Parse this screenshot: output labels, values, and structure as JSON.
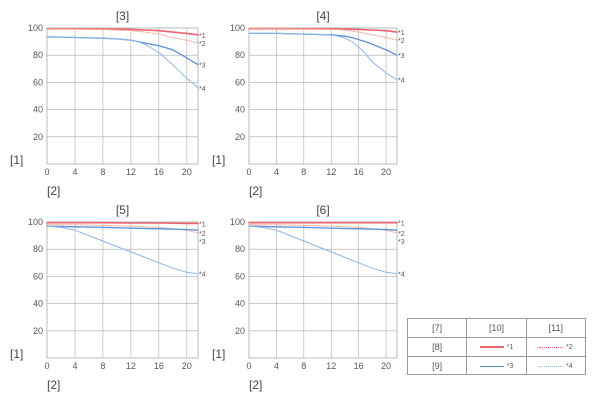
{
  "chart_data": [
    {
      "type": "line",
      "title": "[3]",
      "ylabel": "[1]",
      "xlabel": "[2]",
      "xlim": [
        0,
        21.6
      ],
      "ylim": [
        0,
        100
      ],
      "xticks": [
        0,
        4,
        8,
        12,
        16,
        20
      ],
      "yticks": [
        20,
        40,
        60,
        80,
        100
      ],
      "series": [
        {
          "name": "*1",
          "x": [
            0,
            4,
            8,
            12,
            14,
            16,
            18,
            20,
            21.6
          ],
          "y": [
            99.5,
            99.5,
            99.3,
            99,
            98.5,
            98,
            97,
            96,
            95
          ]
        },
        {
          "name": "*2",
          "x": [
            0,
            4,
            8,
            12,
            14,
            16,
            18,
            20,
            21.6
          ],
          "y": [
            99.5,
            99.3,
            99,
            98,
            97,
            95.5,
            93,
            91,
            89
          ]
        },
        {
          "name": "*3",
          "x": [
            0,
            4,
            8,
            10,
            12,
            14,
            16,
            18,
            20,
            21.6
          ],
          "y": [
            93.5,
            93,
            92.5,
            92,
            91,
            89,
            87,
            84,
            78,
            73
          ]
        },
        {
          "name": "*4",
          "x": [
            0,
            4,
            8,
            10,
            12,
            13,
            14,
            16,
            18,
            20,
            21.6
          ],
          "y": [
            93.5,
            93,
            92.5,
            92,
            91,
            90,
            88,
            82,
            73,
            63,
            56
          ]
        }
      ]
    },
    {
      "type": "line",
      "title": "[4]",
      "ylabel": "[1]",
      "xlabel": "[2]",
      "xlim": [
        0,
        21.6
      ],
      "ylim": [
        0,
        100
      ],
      "xticks": [
        0,
        4,
        8,
        12,
        16,
        20
      ],
      "yticks": [
        20,
        40,
        60,
        80,
        100
      ],
      "series": [
        {
          "name": "*1",
          "x": [
            0,
            4,
            8,
            12,
            16,
            18,
            20,
            21.6
          ],
          "y": [
            99.5,
            99.5,
            99.5,
            99.5,
            99,
            98.5,
            98,
            97
          ]
        },
        {
          "name": "*2",
          "x": [
            0,
            4,
            8,
            12,
            14,
            16,
            18,
            20,
            21.6
          ],
          "y": [
            99.5,
            99.5,
            99.3,
            99,
            98.5,
            97,
            95,
            93,
            91
          ]
        },
        {
          "name": "*3",
          "x": [
            0,
            4,
            8,
            12,
            14,
            15,
            16,
            17,
            18,
            20,
            21.6
          ],
          "y": [
            96,
            96,
            95.5,
            95,
            94,
            93,
            91.5,
            90,
            88,
            84,
            80
          ]
        },
        {
          "name": "*4",
          "x": [
            0,
            4,
            8,
            12,
            13,
            14,
            15,
            16,
            17,
            18,
            20,
            21.6
          ],
          "y": [
            96,
            96,
            95.5,
            95,
            94,
            92.5,
            90,
            86,
            81,
            75,
            67,
            62
          ]
        }
      ]
    },
    {
      "type": "line",
      "title": "[5]",
      "ylabel": "[1]",
      "xlabel": "[2]",
      "xlim": [
        0,
        21.6
      ],
      "ylim": [
        0,
        100
      ],
      "xticks": [
        0,
        4,
        8,
        12,
        16,
        20
      ],
      "yticks": [
        20,
        40,
        60,
        80,
        100
      ],
      "series": [
        {
          "name": "*1",
          "x": [
            0,
            4,
            8,
            12,
            16,
            20,
            21.6
          ],
          "y": [
            99.5,
            99.5,
            99.5,
            99.3,
            99.3,
            99,
            99
          ]
        },
        {
          "name": "*2",
          "x": [
            0,
            4,
            8,
            12,
            16,
            20,
            21.6
          ],
          "y": [
            98,
            98,
            97.5,
            97,
            96,
            94,
            92
          ]
        },
        {
          "name": "*3",
          "x": [
            0,
            4,
            8,
            12,
            16,
            20,
            21.6
          ],
          "y": [
            97,
            96.5,
            96,
            95.5,
            95,
            94.5,
            94
          ]
        },
        {
          "name": "*4",
          "x": [
            0,
            2,
            4,
            6,
            8,
            10,
            12,
            14,
            16,
            18,
            20,
            21.6
          ],
          "y": [
            97,
            96,
            94,
            90,
            86,
            82,
            78,
            74,
            70,
            66,
            63,
            62
          ]
        }
      ]
    },
    {
      "type": "line",
      "title": "[6]",
      "ylabel": "[1]",
      "xlabel": "[2]",
      "xlim": [
        0,
        21.6
      ],
      "ylim": [
        0,
        100
      ],
      "xticks": [
        0,
        4,
        8,
        12,
        16,
        20
      ],
      "yticks": [
        20,
        40,
        60,
        80,
        100
      ],
      "series": [
        {
          "name": "*1",
          "x": [
            0,
            4,
            8,
            12,
            16,
            20,
            21.6
          ],
          "y": [
            99.5,
            99.5,
            99.5,
            99.5,
            99.5,
            99.5,
            99.5
          ]
        },
        {
          "name": "*2",
          "x": [
            0,
            4,
            8,
            12,
            16,
            20,
            21.6
          ],
          "y": [
            98,
            98,
            97.5,
            97,
            96,
            94,
            92
          ]
        },
        {
          "name": "*3",
          "x": [
            0,
            4,
            8,
            12,
            16,
            20,
            21.6
          ],
          "y": [
            97,
            96.5,
            96,
            95.5,
            95,
            94.5,
            94
          ]
        },
        {
          "name": "*4",
          "x": [
            0,
            2,
            4,
            6,
            8,
            10,
            12,
            14,
            16,
            18,
            20,
            21.6
          ],
          "y": [
            97,
            96,
            94,
            90,
            86,
            82,
            78,
            74,
            70,
            66,
            63,
            62
          ]
        }
      ]
    }
  ],
  "legend": {
    "header": [
      "[7]",
      "[10]",
      "[11]"
    ],
    "row1": {
      "label": "[8]",
      "solid": "*1",
      "dotted": "*2"
    },
    "row2": {
      "label": "[9]",
      "solid": "*3",
      "dotted": "*4"
    }
  },
  "colors": {
    "s1": "#f06070",
    "s2": "#f4a58c",
    "s3": "#5b8fd8",
    "s4": "#8fb5e8",
    "grid": "#aaaaaa",
    "text": "#555555"
  }
}
